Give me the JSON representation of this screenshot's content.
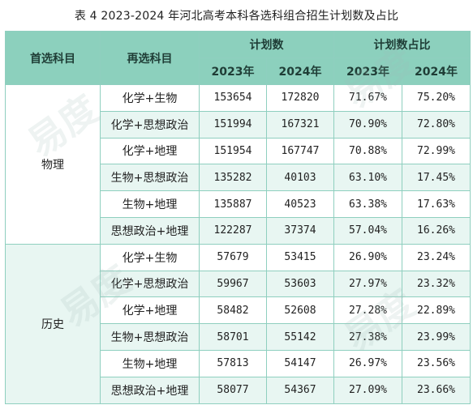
{
  "title": "表 4  2023-2024 年河北高考本科各选科组合招生计划数及占比",
  "header": {
    "col_first_subject": "首选科目",
    "col_second_subject": "再选科目",
    "col_plan_count": "计划数",
    "col_plan_ratio": "计划数占比",
    "year_2023": "2023年",
    "year_2024": "2024年"
  },
  "groups": [
    {
      "name": "物理",
      "rows": [
        {
          "subject": "化学+生物",
          "count_2023": "153654",
          "count_2024": "172820",
          "ratio_2023": "71.67%",
          "ratio_2024": "75.20%"
        },
        {
          "subject": "化学+思想政治",
          "count_2023": "151994",
          "count_2024": "167321",
          "ratio_2023": "70.90%",
          "ratio_2024": "72.80%"
        },
        {
          "subject": "化学+地理",
          "count_2023": "151954",
          "count_2024": "167747",
          "ratio_2023": "70.88%",
          "ratio_2024": "72.99%"
        },
        {
          "subject": "生物+思想政治",
          "count_2023": "135282",
          "count_2024": "40103",
          "ratio_2023": "63.10%",
          "ratio_2024": "17.45%"
        },
        {
          "subject": "生物+地理",
          "count_2023": "135887",
          "count_2024": "40523",
          "ratio_2023": "63.38%",
          "ratio_2024": "17.63%"
        },
        {
          "subject": "思想政治+地理",
          "count_2023": "122287",
          "count_2024": "37374",
          "ratio_2023": "57.04%",
          "ratio_2024": "16.26%"
        }
      ]
    },
    {
      "name": "历史",
      "rows": [
        {
          "subject": "化学+生物",
          "count_2023": "57679",
          "count_2024": "53415",
          "ratio_2023": "26.90%",
          "ratio_2024": "23.24%"
        },
        {
          "subject": "化学+思想政治",
          "count_2023": "59967",
          "count_2024": "53603",
          "ratio_2023": "27.97%",
          "ratio_2024": "23.32%"
        },
        {
          "subject": "化学+地理",
          "count_2023": "58482",
          "count_2024": "52608",
          "ratio_2023": "27.28%",
          "ratio_2024": "22.89%"
        },
        {
          "subject": "生物+思想政治",
          "count_2023": "58701",
          "count_2024": "55142",
          "ratio_2023": "27.38%",
          "ratio_2024": "23.99%"
        },
        {
          "subject": "生物+地理",
          "count_2023": "57813",
          "count_2024": "54147",
          "ratio_2023": "26.97%",
          "ratio_2024": "23.56%"
        },
        {
          "subject": "思想政治+地理",
          "count_2023": "58077",
          "count_2024": "54367",
          "ratio_2023": "27.09%",
          "ratio_2024": "23.66%"
        }
      ]
    }
  ],
  "watermark": {
    "text": "易度",
    "color": "#a0beb9"
  },
  "colors": {
    "header_bg": "#8cd0bd",
    "alt_row_bg": "#e8f6f2",
    "border": "#8fcfbf"
  }
}
